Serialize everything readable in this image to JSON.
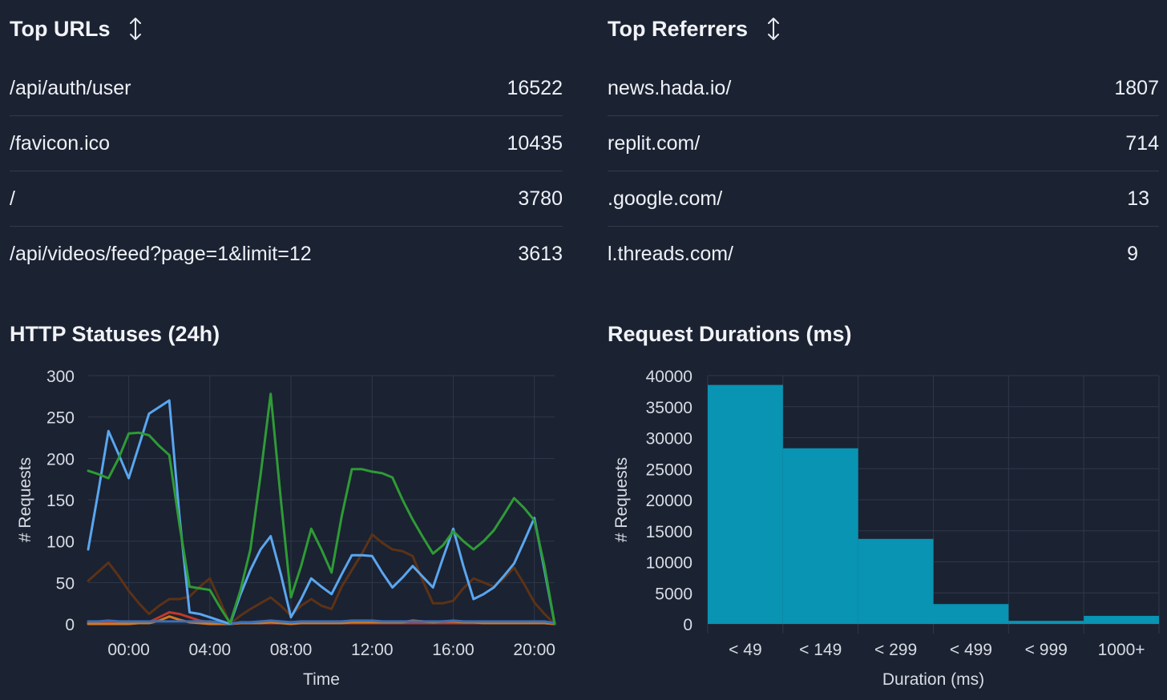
{
  "top_urls": {
    "title": "Top URLs",
    "sort_icon": "sort-arrows-icon",
    "rows": [
      {
        "label": "/api/auth/user",
        "value": "16522"
      },
      {
        "label": "/favicon.ico",
        "value": "10435"
      },
      {
        "label": "/",
        "value": "3780"
      },
      {
        "label": "/api/videos/feed?page=1&limit=12",
        "value": "3613"
      }
    ]
  },
  "top_referrers": {
    "title": "Top Referrers",
    "sort_icon": "sort-arrows-icon",
    "rows": [
      {
        "label": "news.hada.io/",
        "value": "1807"
      },
      {
        "label": "replit.com/",
        "value": "714"
      },
      {
        "label": ".google.com/",
        "value": "13"
      },
      {
        "label": "l.threads.com/",
        "value": "9"
      }
    ]
  },
  "http_statuses": {
    "title": "HTTP Statuses (24h)"
  },
  "request_durations": {
    "title": "Request Durations (ms)"
  },
  "chart_data": [
    {
      "type": "line",
      "title": "HTTP Statuses (24h)",
      "xlabel": "Time",
      "ylabel": "# Requests",
      "ylim": [
        0,
        300
      ],
      "yticks": [
        0,
        50,
        100,
        150,
        200,
        250,
        300
      ],
      "x_tick_labels": [
        "00:00",
        "04:00",
        "08:00",
        "12:00",
        "16:00",
        "20:00"
      ],
      "x_hours": [
        -2,
        -1.5,
        -1,
        -0.5,
        0,
        0.5,
        1,
        1.5,
        2,
        2.5,
        3,
        3.5,
        4,
        4.5,
        5,
        5.5,
        6,
        6.5,
        7,
        7.5,
        8,
        8.5,
        9,
        9.5,
        10,
        10.5,
        11,
        11.5,
        12,
        12.5,
        13,
        13.5,
        14,
        14.5,
        15,
        15.5,
        16,
        16.5,
        17,
        17.5,
        18,
        18.5,
        19,
        19.5,
        20,
        20.5,
        21
      ],
      "grid": true,
      "series": [
        {
          "color": "#2e9b35",
          "values": [
            185,
            181,
            176,
            200,
            230,
            231,
            228,
            215,
            204,
            120,
            45,
            43,
            41,
            20,
            1,
            40,
            90,
            180,
            278,
            150,
            32,
            70,
            115,
            90,
            62,
            130,
            187,
            187,
            184,
            182,
            177,
            150,
            126,
            105,
            85,
            95,
            112,
            100,
            90,
            100,
            113,
            132,
            152,
            140,
            125,
            70,
            0
          ]
        },
        {
          "color": "#5aa6ef",
          "values": [
            90,
            160,
            233,
            205,
            176,
            215,
            254,
            262,
            270,
            130,
            14,
            12,
            8,
            4,
            0,
            35,
            65,
            90,
            106,
            60,
            8,
            30,
            55,
            45,
            36,
            60,
            83,
            83,
            82,
            62,
            44,
            56,
            70,
            57,
            44,
            80,
            115,
            70,
            30,
            36,
            44,
            58,
            73,
            100,
            128,
            65,
            0
          ]
        },
        {
          "color": "#5c3216",
          "values": [
            52,
            63,
            74,
            58,
            40,
            25,
            12,
            22,
            30,
            30,
            33,
            45,
            55,
            28,
            0,
            10,
            18,
            25,
            32,
            22,
            10,
            22,
            30,
            22,
            18,
            45,
            65,
            85,
            108,
            98,
            90,
            88,
            82,
            52,
            25,
            25,
            28,
            43,
            55,
            50,
            45,
            55,
            68,
            48,
            26,
            12,
            0
          ]
        },
        {
          "color": "#c0392b",
          "values": [
            1,
            1,
            1,
            1,
            1,
            1,
            2,
            8,
            14,
            12,
            8,
            4,
            2,
            1,
            0,
            1,
            1,
            1,
            1,
            1,
            1,
            1,
            1,
            1,
            1,
            1,
            1,
            1,
            1,
            1,
            1,
            1,
            1,
            1,
            1,
            1,
            1,
            1,
            1,
            1,
            1,
            1,
            1,
            1,
            1,
            1,
            0
          ]
        },
        {
          "color": "#d4781e",
          "values": [
            0,
            0,
            0,
            0,
            0,
            1,
            1,
            4,
            9,
            5,
            2,
            1,
            0,
            0,
            0,
            1,
            1,
            1,
            2,
            1,
            0,
            1,
            1,
            1,
            1,
            1,
            2,
            2,
            2,
            2,
            2,
            2,
            4,
            3,
            2,
            3,
            3,
            2,
            2,
            1,
            1,
            1,
            1,
            1,
            1,
            1,
            0
          ]
        },
        {
          "color": "#3b6fb6",
          "values": [
            3,
            3,
            4,
            3,
            3,
            3,
            3,
            3,
            3,
            3,
            3,
            3,
            3,
            2,
            0,
            2,
            2,
            3,
            4,
            3,
            2,
            3,
            3,
            3,
            3,
            3,
            4,
            4,
            4,
            3,
            3,
            3,
            3,
            3,
            3,
            3,
            4,
            3,
            3,
            3,
            3,
            3,
            3,
            3,
            3,
            3,
            1
          ]
        }
      ]
    },
    {
      "type": "bar",
      "title": "Request Durations (ms)",
      "xlabel": "Duration (ms)",
      "ylabel": "# Requests",
      "ylim": [
        0,
        40000
      ],
      "yticks": [
        0,
        5000,
        10000,
        15000,
        20000,
        25000,
        30000,
        35000,
        40000
      ],
      "categories": [
        "< 49",
        "< 149",
        "< 299",
        "< 499",
        "< 999",
        "1000+"
      ],
      "values": [
        38500,
        28300,
        13700,
        3200,
        500,
        1300
      ],
      "color": "#0894b2",
      "grid": true
    }
  ]
}
